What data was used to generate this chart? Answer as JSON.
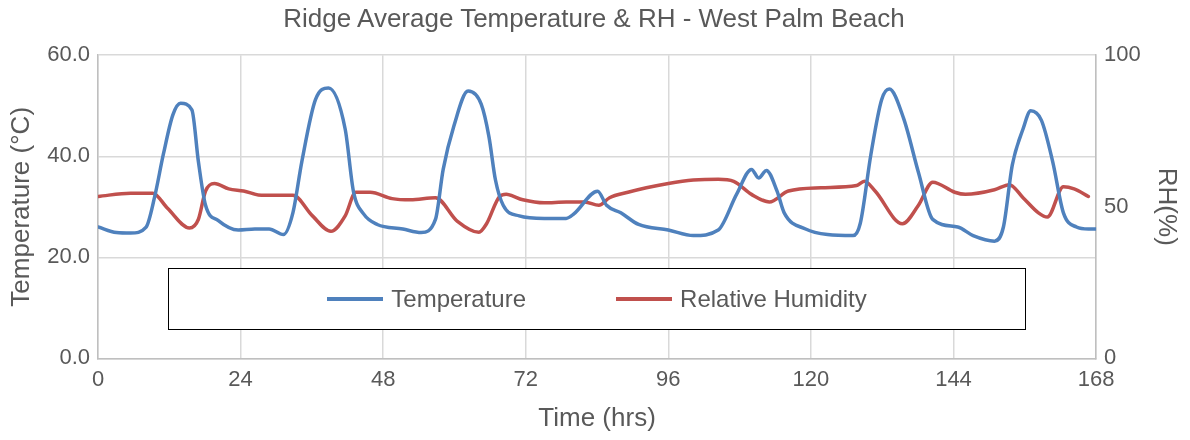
{
  "chart_data": {
    "type": "line",
    "title": "Ridge Average Temperature & RH - West Palm Beach",
    "xlabel": "Time (hrs)",
    "ylabel": "Temperature (°C)",
    "y2label": "RH(%)",
    "xlim": [
      0,
      168
    ],
    "xticks": [
      0,
      24,
      48,
      72,
      96,
      120,
      144,
      168
    ],
    "ylim": [
      0,
      60
    ],
    "yticks": [
      {
        "value": 0,
        "label": "0.0"
      },
      {
        "value": 20,
        "label": "20.0"
      },
      {
        "value": 40,
        "label": "40.0"
      },
      {
        "value": 60,
        "label": "60.0"
      }
    ],
    "y2lim": [
      0,
      100
    ],
    "y2ticks": [
      0,
      50,
      100
    ],
    "grid": true,
    "legend": "bottom",
    "marker": "none",
    "line_style": "solid",
    "series": [
      {
        "name": "Temperature",
        "color": "#4f81bd",
        "x": [
          0,
          3.1,
          5.5,
          8.1,
          9.5,
          11,
          12.6,
          13.9,
          15.8,
          16.9,
          18.1,
          20.2,
          23.6,
          26.4,
          28.8,
          31.2,
          32.8,
          34.3,
          36.6,
          38.8,
          41.6,
          43,
          44.7,
          47,
          51.3,
          54.4,
          56.8,
          58.1,
          59.9,
          62.3,
          64.5,
          65.8,
          66.9,
          68.2,
          70.9,
          75.1,
          78.8,
          80.1,
          84.1,
          85.6,
          88,
          91,
          96,
          100.2,
          104.4,
          107.5,
          110,
          111.2,
          112.5,
          114.3,
          115.5,
          119.1,
          122.8,
          127.1,
          128.3,
          130.1,
          131.9,
          133.2,
          135.6,
          138.1,
          140.5,
          144.7,
          147.3,
          150.9,
          152.4,
          153.9,
          155.7,
          157,
          158.8,
          160.7,
          162.5,
          164.7,
          166.7,
          168
        ],
        "values": [
          26,
          24.9,
          24.8,
          26,
          31.8,
          40.4,
          48.2,
          50.5,
          49.2,
          38.9,
          30.3,
          27.3,
          25.4,
          25.6,
          25.6,
          24.5,
          28.8,
          38.9,
          51.2,
          53.5,
          45.4,
          33,
          28.6,
          26.5,
          25.6,
          24.9,
          27.5,
          37.4,
          46,
          52.9,
          50.3,
          43.9,
          35.3,
          30.3,
          28.2,
          27.7,
          27.7,
          28.6,
          33.1,
          30.3,
          28.8,
          26.5,
          25.4,
          24.3,
          25.4,
          32.5,
          37.4,
          35.7,
          37.2,
          33.1,
          28.8,
          25.6,
          24.5,
          24.3,
          26.7,
          40.4,
          51.2,
          53.3,
          47.5,
          36.8,
          27.5,
          26,
          24.3,
          23.2,
          26,
          38.3,
          45.4,
          49,
          47.1,
          38.9,
          28.8,
          26,
          25.6,
          25.6
        ]
      },
      {
        "name": "Relative Humidity",
        "color": "#c0504d",
        "axis": "y2",
        "x": [
          0,
          5.5,
          9.2,
          11.7,
          15.4,
          16.9,
          18.1,
          19.6,
          22,
          24.5,
          27.5,
          30,
          32.8,
          36.1,
          39.2,
          41.6,
          43.4,
          45.8,
          49.5,
          52.6,
          56.8,
          60.5,
          64.1,
          65.4,
          67.6,
          68.7,
          71.5,
          75.1,
          78.8,
          81.9,
          84.3,
          86.1,
          89.2,
          92.3,
          96,
          100.2,
          104.4,
          107,
          110,
          113,
          116.2,
          121.7,
          127.7,
          129,
          130.8,
          135.4,
          138.1,
          140.5,
          144.2,
          146,
          150.9,
          153.4,
          155.7,
          158.3,
          159.8,
          162.5,
          164.3,
          166.7
        ],
        "values": [
          53.4,
          54.5,
          54.5,
          49.5,
          43,
          45.9,
          55.2,
          57.7,
          55.9,
          55.2,
          53.8,
          53.8,
          53.8,
          47,
          41.9,
          47,
          54.8,
          54.8,
          52.7,
          52.3,
          53,
          45.2,
          41.6,
          44.4,
          53.4,
          54.1,
          52.3,
          51.3,
          51.6,
          51.6,
          50.5,
          53,
          54.8,
          56.3,
          57.7,
          58.8,
          59.1,
          58.4,
          54.1,
          51.6,
          55.2,
          56.3,
          57,
          58.4,
          55.2,
          44.4,
          50.5,
          58.1,
          54.8,
          54.1,
          55.6,
          57.3,
          53,
          48,
          46.6,
          56.6,
          55.9,
          53.4
        ]
      }
    ]
  }
}
